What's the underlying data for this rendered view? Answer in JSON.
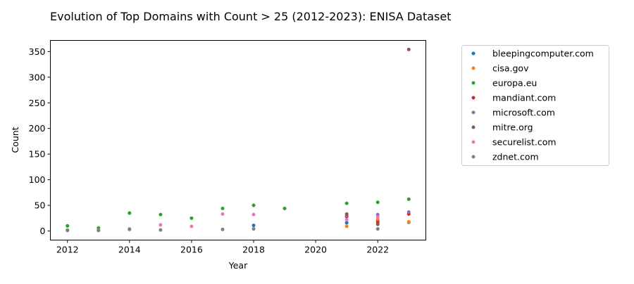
{
  "chart_data": {
    "type": "scatter",
    "title": "Evolution of Top Domains with Count > 25 (2012-2023): ENISA Dataset",
    "xlabel": "Year",
    "ylabel": "Count",
    "xlim": [
      2011.45,
      2023.55
    ],
    "ylim": [
      -17.7,
      371.7
    ],
    "xticks": [
      2012,
      2014,
      2016,
      2018,
      2020,
      2022
    ],
    "yticks": [
      0,
      50,
      100,
      150,
      200,
      250,
      300,
      350
    ],
    "grid": false,
    "legend_position": "outside right, top",
    "series": [
      {
        "name": "bleepingcomputer.com",
        "color": "#1f77b4",
        "points": [
          [
            2018,
            11
          ],
          [
            2021,
            16
          ],
          [
            2022,
            20
          ],
          [
            2023,
            17
          ]
        ]
      },
      {
        "name": "cisa.gov",
        "color": "#ff7f0e",
        "points": [
          [
            2021,
            9
          ],
          [
            2022,
            22
          ],
          [
            2023,
            18
          ]
        ]
      },
      {
        "name": "europa.eu",
        "color": "#2ca02c",
        "points": [
          [
            2012,
            10
          ],
          [
            2013,
            6
          ],
          [
            2014,
            35
          ],
          [
            2015,
            32
          ],
          [
            2016,
            25
          ],
          [
            2017,
            44
          ],
          [
            2018,
            50
          ],
          [
            2019,
            44
          ],
          [
            2021,
            54
          ],
          [
            2022,
            56
          ],
          [
            2023,
            62
          ]
        ]
      },
      {
        "name": "mandiant.com",
        "color": "#d62728",
        "points": [
          [
            2021,
            28
          ],
          [
            2022,
            17
          ],
          [
            2023,
            33
          ]
        ]
      },
      {
        "name": "microsoft.com",
        "color": "#9467bd",
        "points": [
          [
            2021,
            30
          ],
          [
            2022,
            32
          ],
          [
            2023,
            37
          ]
        ]
      },
      {
        "name": "mitre.org",
        "color": "#8c564b",
        "points": [
          [
            2021,
            33
          ],
          [
            2022,
            13
          ],
          [
            2023,
            354
          ]
        ]
      },
      {
        "name": "securelist.com",
        "color": "#e377c2",
        "points": [
          [
            2012,
            2
          ],
          [
            2013,
            2
          ],
          [
            2014,
            4
          ],
          [
            2015,
            12
          ],
          [
            2016,
            9
          ],
          [
            2017,
            33
          ],
          [
            2018,
            32
          ],
          [
            2021,
            22
          ],
          [
            2022,
            27
          ]
        ]
      },
      {
        "name": "zdnet.com",
        "color": "#7f7f7f",
        "points": [
          [
            2012,
            1
          ],
          [
            2013,
            1
          ],
          [
            2014,
            3
          ],
          [
            2015,
            2
          ],
          [
            2017,
            3
          ],
          [
            2018,
            4
          ],
          [
            2022,
            4
          ]
        ]
      }
    ]
  }
}
